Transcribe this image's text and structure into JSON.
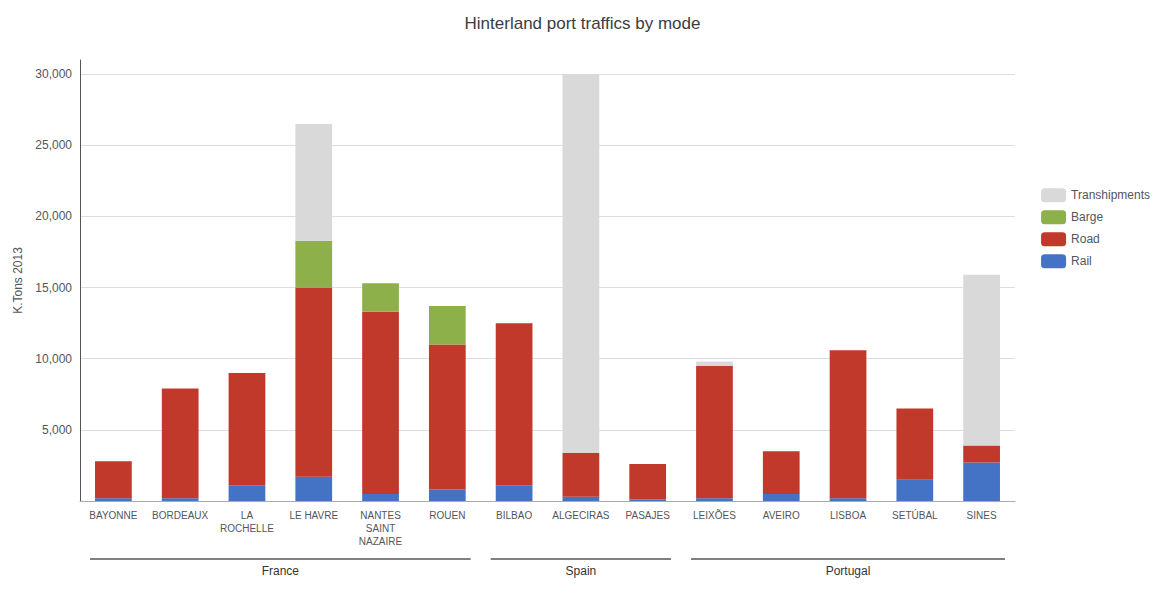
{
  "chart_data": {
    "type": "bar",
    "stacked": true,
    "title": "Hinterland port traffics by mode",
    "ylabel": "K.Tons 2013",
    "categories": [
      "BAYONNE",
      "BORDEAUX",
      "LA\nROCHELLE",
      "LE HAVRE",
      "NANTES\nSAINT\nNAZAIRE",
      "ROUEN",
      "BILBAO",
      "ALGECIRAS",
      "PASAJES",
      "LEIXÕES",
      "AVEIRO",
      "LISBOA",
      "SETÚBAL",
      "SINES"
    ],
    "groups": [
      "France",
      "France",
      "France",
      "France",
      "France",
      "France",
      "Spain",
      "Spain",
      "Spain",
      "Portugal",
      "Portugal",
      "Portugal",
      "Portugal",
      "Portugal"
    ],
    "series": [
      {
        "name": "Rail",
        "color": "#4472c4",
        "values": [
          200,
          200,
          1100,
          1700,
          500,
          800,
          1100,
          300,
          100,
          200,
          500,
          200,
          1500,
          2700
        ]
      },
      {
        "name": "Road",
        "color": "#c0392b",
        "values": [
          2600,
          7700,
          7900,
          13300,
          12800,
          10200,
          11400,
          3100,
          2500,
          9300,
          3000,
          10400,
          5000,
          1200
        ]
      },
      {
        "name": "Barge",
        "color": "#8db04a",
        "values": [
          0,
          0,
          0,
          3300,
          2000,
          2700,
          0,
          0,
          0,
          0,
          0,
          0,
          0,
          0
        ]
      },
      {
        "name": "Transhipments",
        "color": "#d9d9d9",
        "values": [
          0,
          0,
          0,
          8200,
          0,
          0,
          0,
          26600,
          0,
          300,
          0,
          0,
          0,
          12000
        ]
      }
    ],
    "ylim": [
      0,
      31000
    ],
    "yticks": [
      {
        "value": 0,
        "label": null
      },
      {
        "value": 5000,
        "label": "5,000"
      },
      {
        "value": 10000,
        "label": "10,000"
      },
      {
        "value": 15000,
        "label": "15,000"
      },
      {
        "value": 20000,
        "label": "20,000"
      },
      {
        "value": 25000,
        "label": "25,000"
      },
      {
        "value": 30000,
        "label": "30,000"
      }
    ],
    "grid": true,
    "legend": "right"
  }
}
